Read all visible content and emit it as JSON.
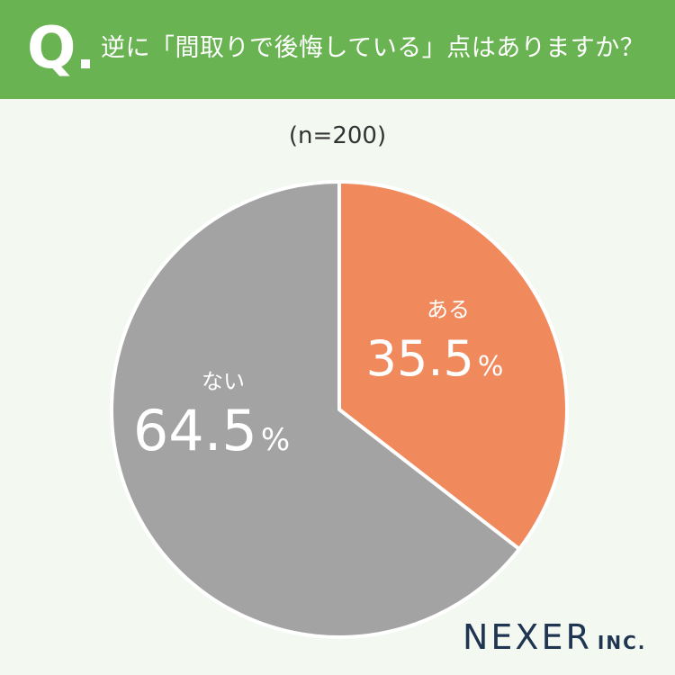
{
  "header": {
    "q_mark": "Q",
    "question": "逆に「間取りで後悔している」点はありますか？"
  },
  "sample_size": "(n=200)",
  "chart_data": {
    "type": "pie",
    "slices": [
      {
        "label": "ある",
        "value": 35.5,
        "display": "35.5",
        "unit": "%",
        "color": "#f0895c"
      },
      {
        "label": "ない",
        "value": 64.5,
        "display": "64.5",
        "unit": "%",
        "color": "#a3a3a3"
      }
    ]
  },
  "logo": {
    "name": "NEXER",
    "suffix": "INC."
  },
  "colors": {
    "header_bg": "#6ab353",
    "page_bg": "#f3f9f1",
    "logo": "#1f3552"
  }
}
